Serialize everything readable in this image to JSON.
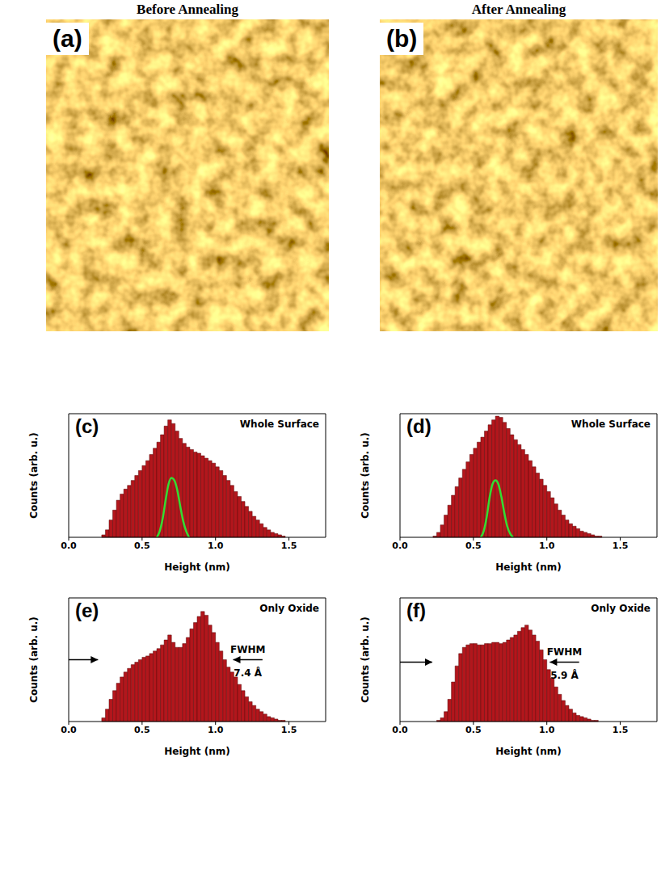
{
  "images": [
    {
      "label": "(a)",
      "heading": "Before Annealing"
    },
    {
      "label": "(b)",
      "heading": "After Annealing"
    }
  ],
  "chart_data": [
    {
      "type": "histogram",
      "label": "(c)",
      "title": "Whole Surface",
      "x_label": "Height (nm)",
      "y_label": "Counts (arb. u.)",
      "color": "#b3161c",
      "grid": false,
      "tick_labels": "x",
      "xlim": [
        0,
        1.75
      ],
      "ylim": [
        0,
        100
      ],
      "xticks": [
        {
          "value": 0,
          "label": "0.0"
        },
        0.5,
        {
          "value": 1,
          "label": "1.0"
        },
        1.5
      ],
      "yticks": [],
      "bins": [
        0.2,
        0.225,
        0.25,
        0.275,
        0.3,
        0.325,
        0.35,
        0.375,
        0.4,
        0.425,
        0.45,
        0.475,
        0.5,
        0.525,
        0.55,
        0.575,
        0.6,
        0.625,
        0.65,
        0.675,
        0.7,
        0.725,
        0.75,
        0.775,
        0.8,
        0.825,
        0.85,
        0.875,
        0.9,
        0.925,
        0.95,
        0.975,
        1.0,
        1.025,
        1.05,
        1.075,
        1.1,
        1.125,
        1.15,
        1.175,
        1.2,
        1.225,
        1.25,
        1.275,
        1.3,
        1.325,
        1.35,
        1.375,
        1.4,
        1.425,
        1.45,
        1.475,
        1.5
      ],
      "counts": [
        0,
        2,
        6,
        14,
        22,
        30,
        35,
        39,
        42,
        46,
        50,
        54,
        58,
        62,
        67,
        72,
        77,
        83,
        90,
        95,
        92,
        86,
        80,
        76,
        73,
        71,
        69,
        68,
        66,
        64,
        62,
        60,
        57,
        54,
        50,
        46,
        42,
        37,
        33,
        29,
        25,
        21,
        17,
        14,
        11,
        8,
        6,
        4,
        3,
        2,
        1,
        0
      ],
      "curve": {
        "type": "line",
        "color": "#33dd33",
        "x": [
          0.6,
          0.62,
          0.64,
          0.66,
          0.68,
          0.7,
          0.72,
          0.74,
          0.76,
          0.78,
          0.8,
          0.82
        ],
        "values": [
          0,
          5,
          15,
          30,
          43,
          48,
          46,
          38,
          25,
          13,
          5,
          0
        ]
      }
    },
    {
      "type": "histogram",
      "label": "(d)",
      "title": "Whole Surface",
      "x_label": "Height (nm)",
      "y_label": "Counts (arb. u.)",
      "color": "#b3161c",
      "grid": false,
      "tick_labels": "x",
      "xlim": [
        0,
        1.75
      ],
      "ylim": [
        0,
        100
      ],
      "xticks": [
        {
          "value": 0,
          "label": "0.0"
        },
        0.5,
        {
          "value": 1,
          "label": "1.0"
        },
        1.5
      ],
      "yticks": [],
      "bins": [
        0.2,
        0.225,
        0.25,
        0.275,
        0.3,
        0.325,
        0.35,
        0.375,
        0.4,
        0.425,
        0.45,
        0.475,
        0.5,
        0.525,
        0.55,
        0.575,
        0.6,
        0.625,
        0.65,
        0.675,
        0.7,
        0.725,
        0.75,
        0.775,
        0.8,
        0.825,
        0.85,
        0.875,
        0.9,
        0.925,
        0.95,
        0.975,
        1.0,
        1.025,
        1.05,
        1.075,
        1.1,
        1.125,
        1.15,
        1.175,
        1.2,
        1.225,
        1.25,
        1.275,
        1.3,
        1.325,
        1.35,
        1.375,
        1.4,
        1.425,
        1.45,
        1.475,
        1.5
      ],
      "counts": [
        0,
        1,
        4,
        10,
        18,
        26,
        34,
        41,
        48,
        55,
        61,
        67,
        72,
        77,
        81,
        86,
        91,
        95,
        98,
        97,
        93,
        88,
        83,
        79,
        75,
        71,
        67,
        62,
        57,
        52,
        47,
        42,
        37,
        32,
        27,
        22,
        18,
        14,
        11,
        9,
        7,
        5,
        4,
        3,
        2,
        1,
        1,
        0,
        0,
        0,
        0,
        0
      ],
      "curve": {
        "type": "line",
        "color": "#33dd33",
        "x": [
          0.55,
          0.57,
          0.59,
          0.61,
          0.63,
          0.65,
          0.67,
          0.69,
          0.71,
          0.73,
          0.75,
          0.77
        ],
        "values": [
          0,
          5,
          16,
          32,
          43,
          46,
          43,
          33,
          20,
          9,
          3,
          0
        ]
      }
    },
    {
      "type": "histogram",
      "label": "(e)",
      "title": "Only Oxide",
      "x_label": "Height (nm)",
      "y_label": "Counts (arb. u.)",
      "color": "#b3161c",
      "grid": false,
      "tick_labels": "x",
      "xlim": [
        0,
        1.75
      ],
      "ylim": [
        0,
        100
      ],
      "xticks": [
        {
          "value": 0,
          "label": "0.0"
        },
        0.5,
        {
          "value": 1,
          "label": "1.0"
        },
        1.5
      ],
      "yticks": [],
      "bins": [
        0.2,
        0.225,
        0.25,
        0.275,
        0.3,
        0.325,
        0.35,
        0.375,
        0.4,
        0.425,
        0.45,
        0.475,
        0.5,
        0.525,
        0.55,
        0.575,
        0.6,
        0.625,
        0.65,
        0.675,
        0.7,
        0.725,
        0.75,
        0.775,
        0.8,
        0.825,
        0.85,
        0.875,
        0.9,
        0.925,
        0.95,
        0.975,
        1.0,
        1.025,
        1.05,
        1.075,
        1.1,
        1.125,
        1.15,
        1.175,
        1.2,
        1.225,
        1.25,
        1.275,
        1.3,
        1.325,
        1.35,
        1.375,
        1.4,
        1.425,
        1.45,
        1.475,
        1.5
      ],
      "counts": [
        0,
        3,
        10,
        18,
        25,
        31,
        36,
        40,
        43,
        46,
        48,
        50,
        52,
        53,
        55,
        57,
        59,
        62,
        66,
        70,
        64,
        60,
        60,
        63,
        68,
        75,
        80,
        85,
        89,
        86,
        78,
        72,
        64,
        57,
        50,
        44,
        40,
        36,
        30,
        25,
        20,
        16,
        13,
        10,
        8,
        6,
        4,
        3,
        2,
        1,
        1,
        0
      ],
      "fwhm": {
        "text": [
          "FWHM",
          "7.4 Å"
        ],
        "height": 50,
        "arrows": [
          {
            "from": 0.0,
            "to": 0.2
          },
          {
            "from": 1.32,
            "to": 1.12
          }
        ]
      }
    },
    {
      "type": "histogram",
      "label": "(f)",
      "title": "Only Oxide",
      "x_label": "Height (nm)",
      "y_label": "Counts (arb. u.)",
      "color": "#b3161c",
      "grid": false,
      "tick_labels": "x",
      "xlim": [
        0,
        1.75
      ],
      "ylim": [
        0,
        100
      ],
      "xticks": [
        {
          "value": 0,
          "label": "0.0"
        },
        0.5,
        {
          "value": 1,
          "label": "1.0"
        },
        1.5
      ],
      "yticks": [],
      "bins": [
        0.2,
        0.225,
        0.25,
        0.275,
        0.3,
        0.325,
        0.35,
        0.375,
        0.4,
        0.425,
        0.45,
        0.475,
        0.5,
        0.525,
        0.55,
        0.575,
        0.6,
        0.625,
        0.65,
        0.675,
        0.7,
        0.725,
        0.75,
        0.775,
        0.8,
        0.825,
        0.85,
        0.875,
        0.9,
        0.925,
        0.95,
        0.975,
        1.0,
        1.025,
        1.05,
        1.075,
        1.1,
        1.125,
        1.15,
        1.175,
        1.2,
        1.225,
        1.25,
        1.275,
        1.3,
        1.325,
        1.35,
        1.375,
        1.4,
        1.425,
        1.45,
        1.475,
        1.5
      ],
      "counts": [
        0,
        0,
        1,
        3,
        8,
        18,
        32,
        45,
        55,
        60,
        62,
        63,
        63,
        62,
        62,
        63,
        63,
        64,
        64,
        63,
        64,
        66,
        68,
        70,
        73,
        76,
        78,
        74,
        70,
        65,
        58,
        50,
        42,
        35,
        28,
        22,
        17,
        13,
        10,
        7,
        5,
        4,
        3,
        2,
        1,
        1,
        0,
        0,
        0,
        0,
        0,
        0
      ],
      "fwhm": {
        "text": [
          "FWHM",
          "5.9 Å"
        ],
        "height": 48,
        "arrows": [
          {
            "from": 0.0,
            "to": 0.22
          },
          {
            "from": 1.22,
            "to": 1.02
          }
        ]
      }
    }
  ]
}
